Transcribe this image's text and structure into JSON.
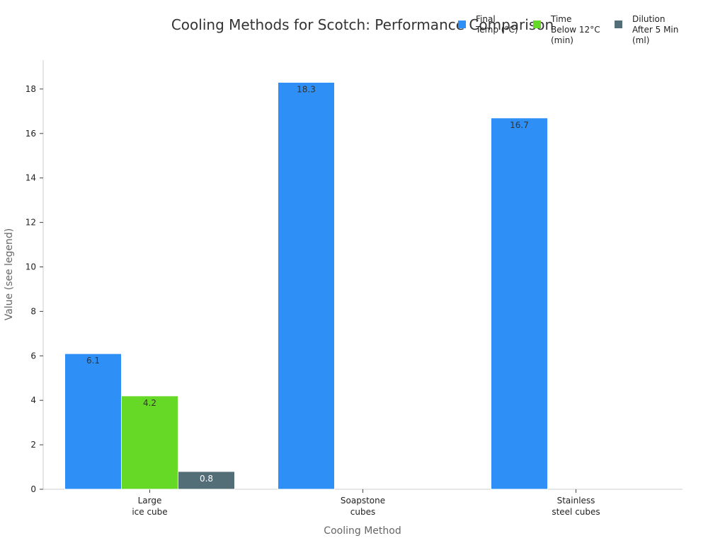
{
  "chart_data": {
    "type": "bar",
    "title": "Cooling Methods for Scotch: Performance Comparison",
    "xlabel": "Cooling Method",
    "ylabel": "Value (see legend)",
    "categories": [
      [
        "Large",
        "ice cube"
      ],
      [
        "Soapstone",
        "cubes"
      ],
      [
        "Stainless",
        "steel cubes"
      ]
    ],
    "series": [
      {
        "name": [
          "Final",
          "Temp (°C)"
        ],
        "color": "#2E8FF7",
        "values": [
          6.1,
          18.3,
          16.7
        ]
      },
      {
        "name": [
          "Time",
          "Below 12°C",
          "(min)"
        ],
        "color": "#66D926",
        "values": [
          4.2,
          null,
          null
        ]
      },
      {
        "name": [
          "Dilution",
          "After 5 Min",
          "(ml)"
        ],
        "color": "#546E78",
        "values": [
          0.8,
          null,
          null
        ]
      }
    ],
    "data_labels": [
      [
        "6.1",
        "18.3",
        "16.7"
      ],
      [
        "4.2",
        "",
        ""
      ],
      [
        "0.8",
        "",
        ""
      ]
    ],
    "yticks": [
      0,
      2,
      4,
      6,
      8,
      10,
      12,
      14,
      16,
      18
    ],
    "ylim": [
      0,
      19.3
    ],
    "legend_position": "top-right",
    "grid": false
  }
}
